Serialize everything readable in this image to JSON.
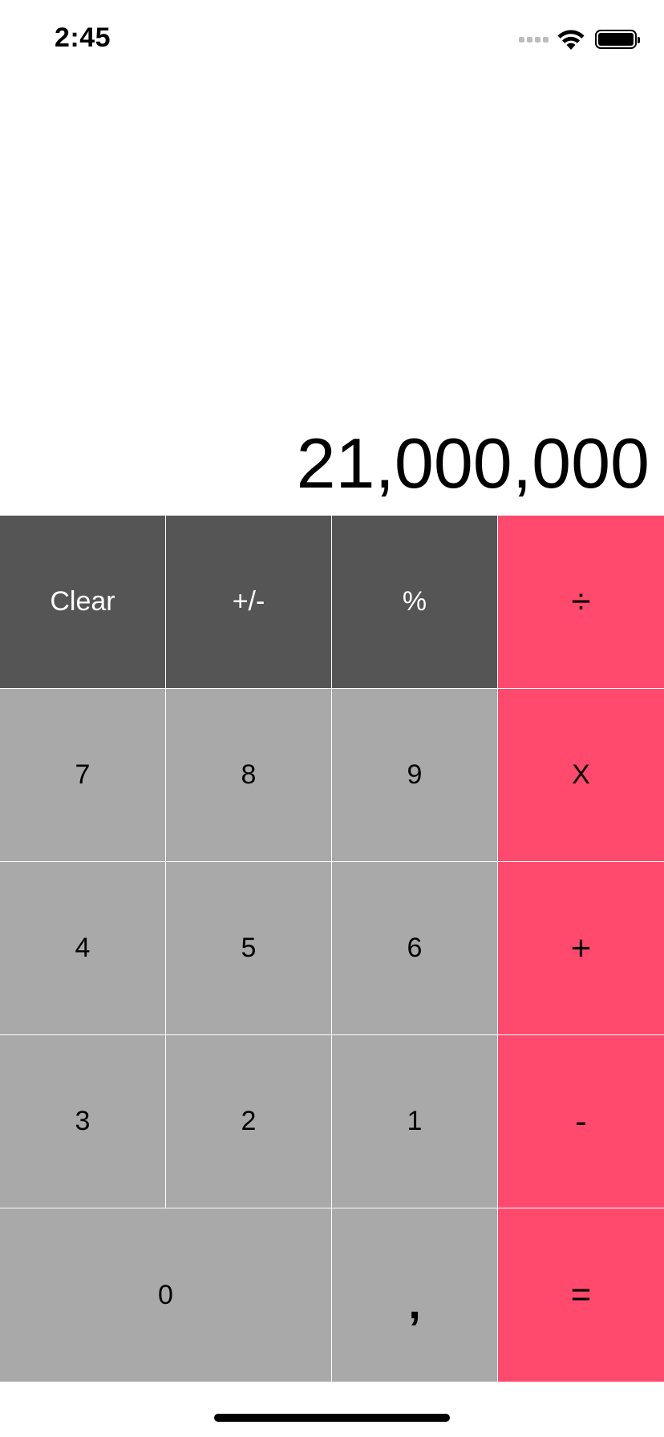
{
  "status_bar": {
    "time": "2:45",
    "icons": [
      "signal-icon",
      "wifi-icon",
      "battery-icon"
    ]
  },
  "display": {
    "value": "21,000,000"
  },
  "keys": {
    "clear": "Clear",
    "sign": "+/-",
    "percent": "%",
    "divide": "÷",
    "seven": "7",
    "eight": "8",
    "nine": "9",
    "multiply": "X",
    "four": "4",
    "five": "5",
    "six": "6",
    "add": "+",
    "three": "3",
    "two": "2",
    "one": "1",
    "subtract": "-",
    "zero": "0",
    "decimal": ",",
    "equals": "="
  },
  "colors": {
    "function_keys": "#555555",
    "digit_keys": "#a9a9a9",
    "operator_keys": "#ff4a6d",
    "background": "#ffffff"
  }
}
